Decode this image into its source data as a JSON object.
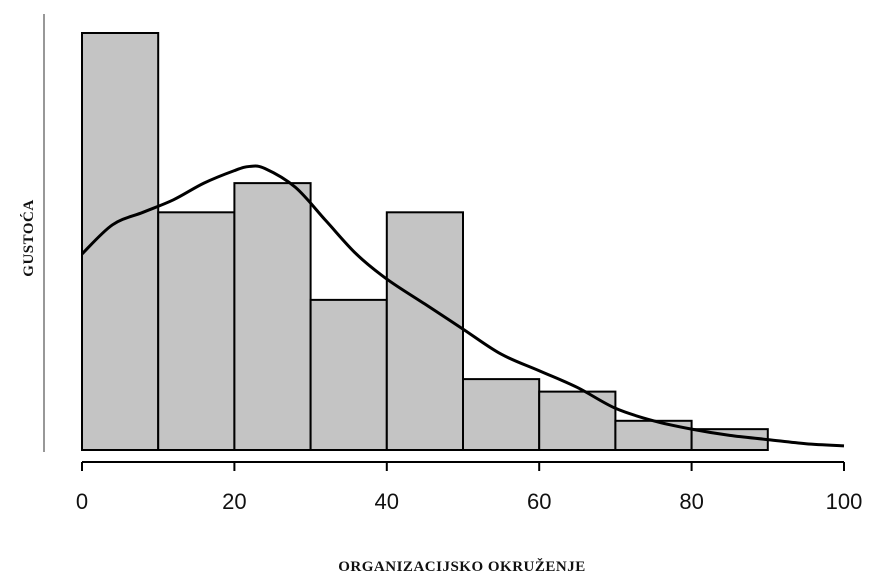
{
  "chart_data": {
    "type": "histogram",
    "title": "",
    "xlabel": "ORGANIZACIJSKO OKRUŽENJE",
    "ylabel": "GUSTOĆA",
    "xlim": [
      0,
      100
    ],
    "ylim": [
      0,
      1
    ],
    "x_ticks": [
      0,
      20,
      40,
      60,
      80,
      100
    ],
    "y_ticks_shown": false,
    "grid": false,
    "bins": [
      {
        "start": 0,
        "end": 10,
        "value": 1.0
      },
      {
        "start": 10,
        "end": 20,
        "value": 0.57
      },
      {
        "start": 20,
        "end": 30,
        "value": 0.64
      },
      {
        "start": 30,
        "end": 40,
        "value": 0.36
      },
      {
        "start": 40,
        "end": 50,
        "value": 0.57
      },
      {
        "start": 50,
        "end": 60,
        "value": 0.17
      },
      {
        "start": 60,
        "end": 70,
        "value": 0.14
      },
      {
        "start": 70,
        "end": 80,
        "value": 0.07
      },
      {
        "start": 80,
        "end": 90,
        "value": 0.05
      }
    ],
    "density_curve": {
      "x": [
        0,
        4,
        8,
        12,
        16,
        20,
        22,
        24,
        28,
        32,
        36,
        40,
        45,
        50,
        55,
        60,
        65,
        70,
        75,
        80,
        85,
        90,
        95,
        100
      ],
      "y": [
        0.47,
        0.54,
        0.57,
        0.6,
        0.64,
        0.67,
        0.68,
        0.675,
        0.63,
        0.55,
        0.47,
        0.41,
        0.35,
        0.29,
        0.23,
        0.19,
        0.15,
        0.1,
        0.07,
        0.05,
        0.035,
        0.025,
        0.015,
        0.01
      ]
    },
    "colors": {
      "bar_fill": "#c4c4c4",
      "bar_stroke": "#000000",
      "curve": "#000000",
      "axis": "#000000"
    }
  }
}
